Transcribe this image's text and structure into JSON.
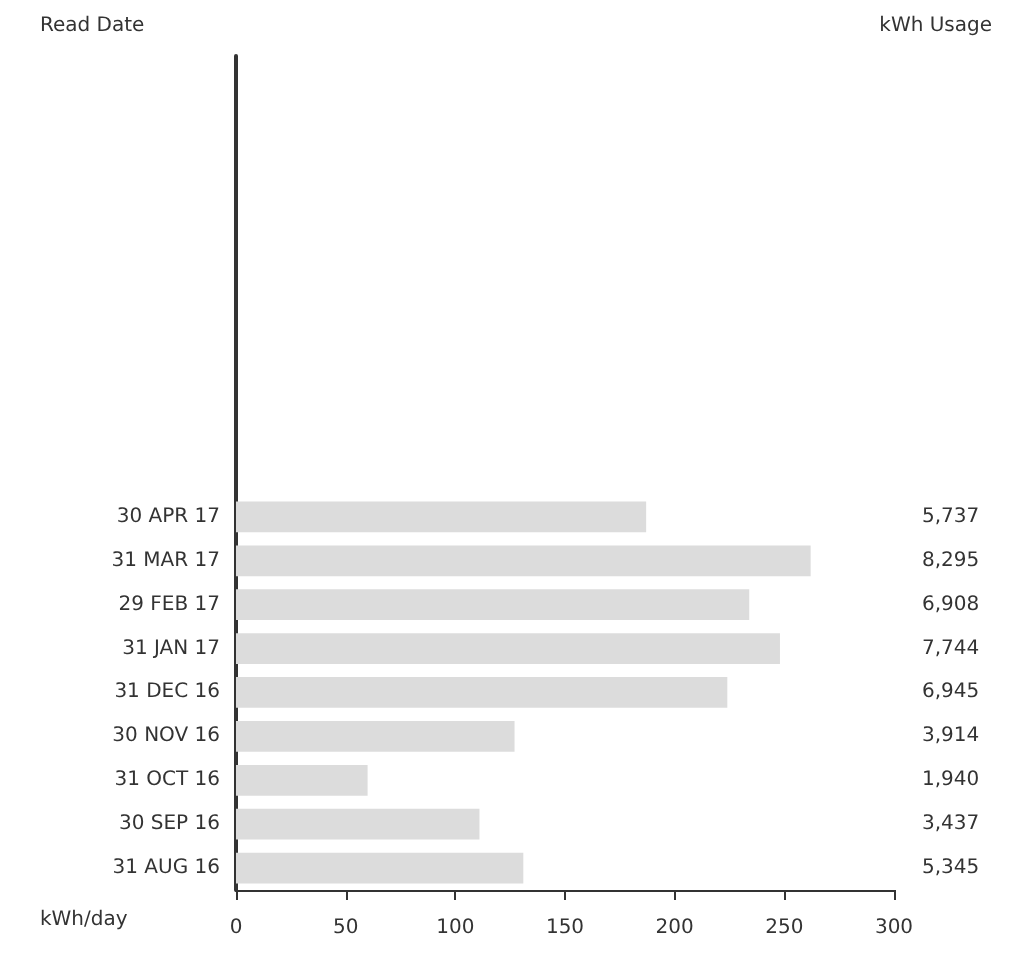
{
  "chart_data": {
    "type": "bar",
    "orientation": "horizontal",
    "ylabel": "Read Date",
    "y2label": "kWh Usage",
    "xlabel": "kWh/day",
    "categories": [
      null,
      null,
      null,
      null,
      null,
      null,
      null,
      null,
      null,
      null,
      "30 APR 17",
      "31 MAR 17",
      "29 FEB 17",
      "31 JAN 17",
      "31 DEC 16",
      "30 NOV 16",
      "31 OCT 16",
      "30 SEP 16",
      "31 AUG 16"
    ],
    "values": [
      null,
      null,
      null,
      null,
      null,
      null,
      null,
      null,
      null,
      null,
      187,
      262,
      234,
      248,
      224,
      127,
      60,
      111,
      131
    ],
    "y2_categories": [
      null,
      null,
      null,
      null,
      null,
      null,
      null,
      null,
      null,
      null,
      "5,737",
      "8,295",
      "6,908",
      "7,744",
      "6,945",
      "3,914",
      "1,940",
      "3,437",
      "5,345"
    ],
    "color": "#dcdcdc",
    "xlim": [
      0,
      300
    ],
    "xticks": [
      0,
      50,
      100,
      150,
      200,
      250,
      300
    ],
    "grid": false
  }
}
